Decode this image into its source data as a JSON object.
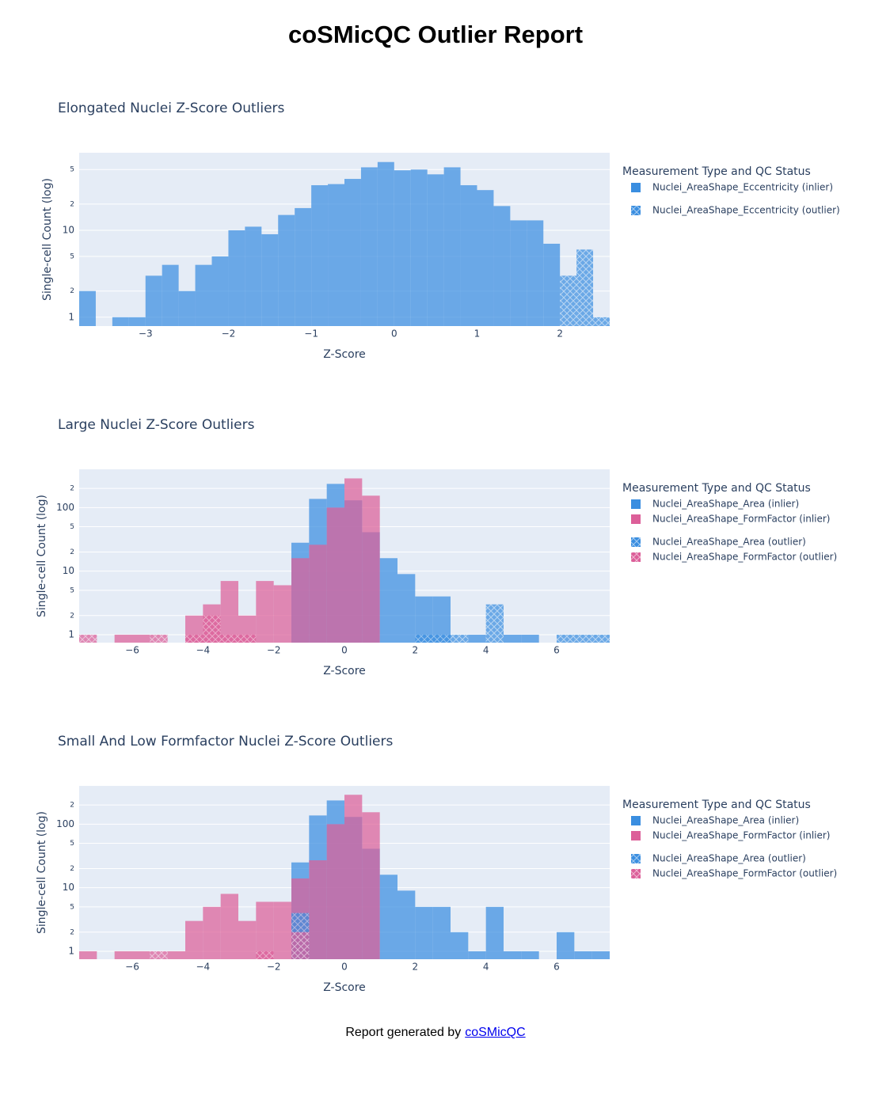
{
  "title": "coSMicQC Outlier Report",
  "footer": {
    "text": "Report generated by",
    "link": "coSMicQC"
  },
  "chart_data": [
    {
      "type": "histogram",
      "title": "Elongated Nuclei Z-Score Outliers",
      "x_label": "Z-Score",
      "y_label": "Single-cell Count (log)",
      "legend_title": "Measurement Type and QC Status",
      "log_scale": true,
      "grid": true,
      "bins": [
        -3.8,
        -3.6,
        -3.4,
        -3.2,
        -3,
        -2.8,
        -2.6,
        -2.4,
        -2.2,
        -2,
        -1.8,
        -1.6,
        -1.4,
        -1.2,
        -1,
        -0.8,
        -0.6,
        -0.4,
        -0.2,
        0,
        0.2,
        0.4,
        0.6,
        0.8,
        1,
        1.2,
        1.4,
        1.6,
        1.8,
        2,
        2.2,
        2.4,
        2.6
      ],
      "xlim": [
        -3.8,
        2.6
      ],
      "xticks": [
        {
          "value": -3,
          "label": "−3"
        },
        {
          "value": -2,
          "label": "−2"
        },
        {
          "value": -1,
          "label": "−1"
        },
        0,
        1,
        2
      ],
      "ylim": [
        0.79,
        78
      ],
      "yticks": [
        1,
        2,
        5,
        10,
        {
          "value": 20,
          "label": "2"
        },
        {
          "value": 50,
          "label": "5"
        }
      ],
      "series": [
        {
          "name": "Nuclei_AreaShape_Eccentricity (inlier)",
          "color": "#3a8ee0",
          "values": [
            2,
            null,
            1,
            1,
            3,
            4,
            2,
            4,
            5,
            10,
            11,
            9,
            15,
            18,
            33,
            34,
            39,
            53,
            61,
            49,
            50,
            44,
            53,
            33,
            29,
            19,
            13,
            13,
            7,
            null,
            null,
            null
          ]
        },
        {
          "name": "Nuclei_AreaShape_Eccentricity (outlier)",
          "color": "#3a8ee0",
          "pattern": "x",
          "values": [
            null,
            null,
            null,
            null,
            null,
            null,
            null,
            null,
            null,
            null,
            null,
            null,
            null,
            null,
            null,
            null,
            null,
            null,
            null,
            null,
            null,
            null,
            null,
            null,
            null,
            null,
            null,
            null,
            null,
            3,
            6,
            1
          ]
        }
      ]
    },
    {
      "type": "histogram",
      "title": "Large Nuclei Z-Score Outliers",
      "x_label": "Z-Score",
      "y_label": "Single-cell Count (log)",
      "legend_title": "Measurement Type and QC Status",
      "log_scale": true,
      "grid": true,
      "bins": [
        -7.5,
        -7,
        -6.5,
        -6,
        -5.5,
        -5,
        -4.5,
        -4,
        -3.5,
        -3,
        -2.5,
        -2,
        -1.5,
        -1,
        -0.5,
        0,
        0.5,
        1,
        1.5,
        2,
        2.5,
        3,
        3.5,
        4,
        4.5,
        5,
        5.5,
        6,
        6.5,
        7,
        7.5
      ],
      "xlim": [
        -7.5,
        7.5
      ],
      "xticks": [
        {
          "value": -6,
          "label": "−6"
        },
        {
          "value": -4,
          "label": "−4"
        },
        {
          "value": -2,
          "label": "−2"
        },
        0,
        2,
        4,
        6
      ],
      "ylim": [
        0.75,
        400
      ],
      "yticks": [
        1,
        2,
        5,
        10,
        {
          "value": 20,
          "label": "2"
        },
        {
          "value": 50,
          "label": "5"
        },
        100,
        {
          "value": 200,
          "label": "2"
        }
      ],
      "series": [
        {
          "name": "Nuclei_AreaShape_Area (inlier)",
          "color": "#3a8ee0",
          "values": [
            null,
            null,
            null,
            null,
            null,
            null,
            null,
            null,
            null,
            null,
            null,
            null,
            28,
            137,
            236,
            130,
            41,
            16,
            9,
            4,
            4,
            null,
            1,
            null,
            1,
            1,
            null,
            null,
            null,
            null
          ]
        },
        {
          "name": "Nuclei_AreaShape_FormFactor (inlier)",
          "color": "#dc5f99",
          "values": [
            null,
            null,
            1,
            1,
            null,
            null,
            2,
            3,
            7,
            2,
            7,
            6,
            16,
            26,
            100,
            288,
            154,
            null,
            null,
            null,
            null,
            null,
            null,
            null,
            null,
            null,
            null,
            null,
            null,
            null
          ]
        },
        {
          "name": "Nuclei_AreaShape_Area (outlier)",
          "color": "#3a8ee0",
          "pattern": "x",
          "values": [
            null,
            null,
            null,
            null,
            null,
            null,
            null,
            null,
            null,
            null,
            null,
            null,
            null,
            null,
            null,
            null,
            null,
            null,
            null,
            1,
            1,
            1,
            null,
            3,
            null,
            null,
            null,
            1,
            1,
            1
          ]
        },
        {
          "name": "Nuclei_AreaShape_FormFactor (outlier)",
          "color": "#dc5f99",
          "pattern": "x",
          "values": [
            1,
            null,
            null,
            null,
            1,
            null,
            1,
            2,
            1,
            1,
            null,
            null,
            null,
            null,
            null,
            null,
            null,
            null,
            null,
            null,
            null,
            null,
            null,
            null,
            null,
            null,
            null,
            null,
            null,
            null
          ]
        }
      ]
    },
    {
      "type": "histogram",
      "title": "Small And Low Formfactor Nuclei Z-Score Outliers",
      "x_label": "Z-Score",
      "y_label": "Single-cell Count (log)",
      "legend_title": "Measurement Type and QC Status",
      "log_scale": true,
      "grid": true,
      "bins": [
        -7.5,
        -7,
        -6.5,
        -6,
        -5.5,
        -5,
        -4.5,
        -4,
        -3.5,
        -3,
        -2.5,
        -2,
        -1.5,
        -1,
        -0.5,
        0,
        0.5,
        1,
        1.5,
        2,
        2.5,
        3,
        3.5,
        4,
        4.5,
        5,
        5.5,
        6,
        6.5,
        7,
        7.5
      ],
      "xlim": [
        -7.5,
        7.5
      ],
      "xticks": [
        {
          "value": -6,
          "label": "−6"
        },
        {
          "value": -4,
          "label": "−4"
        },
        {
          "value": -2,
          "label": "−2"
        },
        0,
        2,
        4,
        6
      ],
      "ylim": [
        0.75,
        400
      ],
      "yticks": [
        1,
        2,
        5,
        10,
        {
          "value": 20,
          "label": "2"
        },
        {
          "value": 50,
          "label": "5"
        },
        100,
        {
          "value": 200,
          "label": "2"
        }
      ],
      "series": [
        {
          "name": "Nuclei_AreaShape_Area (inlier)",
          "color": "#3a8ee0",
          "values": [
            null,
            null,
            null,
            null,
            null,
            null,
            null,
            null,
            null,
            null,
            null,
            null,
            25,
            137,
            236,
            130,
            41,
            16,
            9,
            5,
            5,
            2,
            1,
            5,
            1,
            1,
            null,
            2,
            1,
            1
          ]
        },
        {
          "name": "Nuclei_AreaShape_FormFactor (inlier)",
          "color": "#dc5f99",
          "values": [
            1,
            null,
            1,
            1,
            null,
            1,
            3,
            5,
            8,
            3,
            6,
            6,
            14,
            27,
            100,
            290,
            154,
            null,
            null,
            null,
            null,
            null,
            null,
            null,
            null,
            null,
            null,
            null,
            null,
            null
          ]
        },
        {
          "name": "Nuclei_AreaShape_Area (outlier)",
          "color": "#3a8ee0",
          "pattern": "x",
          "values": [
            null,
            null,
            null,
            null,
            null,
            null,
            null,
            null,
            null,
            null,
            null,
            null,
            4,
            null,
            null,
            null,
            null,
            null,
            null,
            null,
            null,
            null,
            null,
            null,
            null,
            null,
            null,
            null,
            null,
            null
          ]
        },
        {
          "name": "Nuclei_AreaShape_FormFactor (outlier)",
          "color": "#dc5f99",
          "pattern": "x",
          "values": [
            null,
            null,
            null,
            null,
            1,
            null,
            null,
            null,
            null,
            null,
            1,
            null,
            2,
            null,
            null,
            null,
            null,
            null,
            null,
            null,
            null,
            null,
            null,
            null,
            null,
            null,
            null,
            null,
            null,
            null
          ]
        }
      ]
    }
  ]
}
